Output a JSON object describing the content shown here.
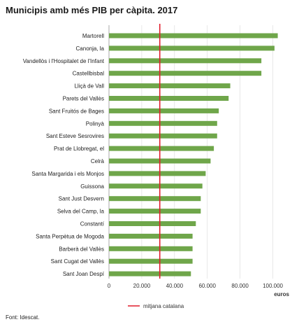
{
  "title": "Municipis amb més PIB per càpita. 2017",
  "source": "Font: Idescat.",
  "colors": {
    "bar": "#6fa64a",
    "reference_line": "#e11d2b",
    "grid": "#d9d9d9",
    "axis": "#9a9a9a"
  },
  "chart_data": {
    "type": "bar",
    "orientation": "horizontal",
    "title": "Municipis amb més PIB per càpita. 2017",
    "xlabel": "euros",
    "ylabel": "",
    "xlim": [
      0,
      110000
    ],
    "xticks": [
      0,
      20000,
      40000,
      60000,
      80000,
      100000
    ],
    "xtick_labels": [
      "0",
      "20.000",
      "40.000",
      "60.000",
      "80.000",
      "100.000"
    ],
    "grid": true,
    "categories": [
      "Martorell",
      "Canonja, la",
      "Vandellòs i l'Hospitalet de l'Infant",
      "Castellbisbal",
      "Lliçà de Vall",
      "Parets del Vallès",
      "Sant Fruitós de Bages",
      "Polinyà",
      "Sant Esteve Sesrovires",
      "Prat de Llobregat, el",
      "Celrà",
      "Santa Margarida i els Monjos",
      "Guissona",
      "Sant Just Desvern",
      "Selva del Camp, la",
      "Constantí",
      "Santa Perpètua de Mogoda",
      "Barberà del Vallès",
      "Sant Cugat del Vallès",
      "Sant Joan Despí"
    ],
    "values": [
      103000,
      101000,
      93000,
      93000,
      74000,
      73000,
      67000,
      66000,
      66000,
      64000,
      62000,
      59000,
      57000,
      56000,
      56000,
      53000,
      51000,
      51000,
      51000,
      50000
    ],
    "reference_line": {
      "name": "mitjana catalana",
      "value": 31000
    },
    "legend_position": "bottom"
  }
}
